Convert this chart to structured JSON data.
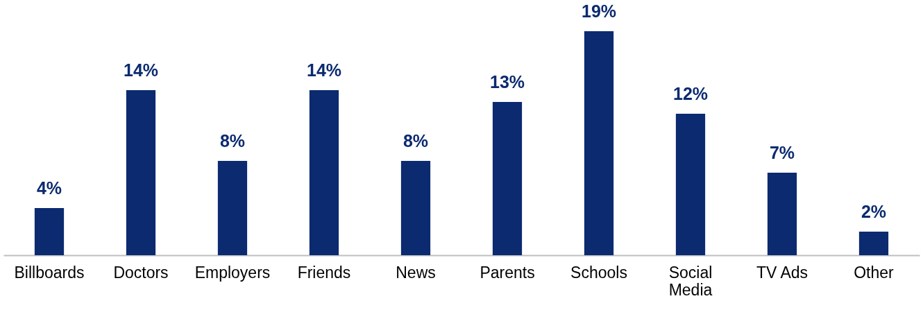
{
  "chart_data": {
    "type": "bar",
    "categories": [
      "Billboards",
      "Doctors",
      "Employers",
      "Friends",
      "News",
      "Parents",
      "Schools",
      "Social Media",
      "TV Ads",
      "Other"
    ],
    "values": [
      4,
      14,
      8,
      14,
      8,
      13,
      19,
      12,
      7,
      2
    ],
    "value_labels": [
      "4%",
      "14%",
      "8%",
      "14%",
      "8%",
      "13%",
      "19%",
      "12%",
      "7%",
      "2%"
    ],
    "color": "#0b2a70"
  }
}
